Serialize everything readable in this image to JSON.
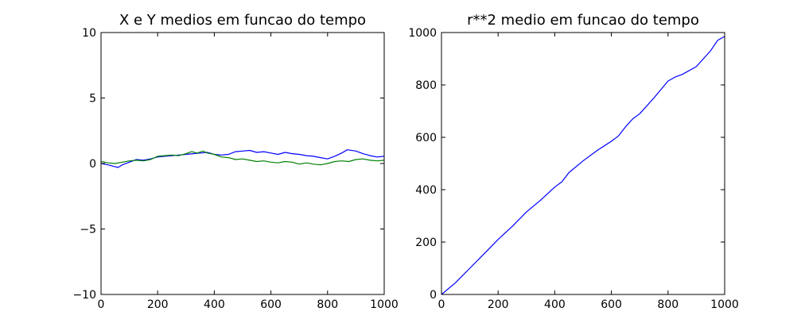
{
  "chart_data": [
    {
      "type": "line",
      "title": "X e Y medios em funcao do tempo",
      "xlabel": "",
      "ylabel": "",
      "xlim": [
        0,
        1000
      ],
      "ylim": [
        -10,
        10
      ],
      "xticks": [
        0,
        200,
        400,
        600,
        800,
        1000
      ],
      "xtick_labels": [
        "0",
        "200",
        "400",
        "600",
        "800",
        "1000"
      ],
      "yticks": [
        -10,
        -5,
        0,
        5,
        10
      ],
      "ytick_labels": [
        "−10",
        "−5",
        "0",
        "5",
        "10"
      ],
      "grid": false,
      "series": [
        {
          "color": "#0000ff",
          "x": [
            0,
            25,
            50,
            60,
            75,
            100,
            125,
            150,
            175,
            200,
            225,
            250,
            275,
            300,
            325,
            350,
            375,
            400,
            425,
            450,
            475,
            500,
            525,
            550,
            575,
            600,
            625,
            650,
            675,
            700,
            725,
            750,
            775,
            800,
            825,
            850,
            870,
            900,
            925,
            950,
            975,
            1000
          ],
          "values": [
            0.0,
            -0.1,
            -0.25,
            -0.3,
            -0.1,
            0.1,
            0.3,
            0.25,
            0.35,
            0.5,
            0.55,
            0.6,
            0.65,
            0.7,
            0.75,
            0.8,
            0.85,
            0.7,
            0.65,
            0.7,
            0.9,
            0.95,
            1.0,
            0.85,
            0.9,
            0.8,
            0.7,
            0.85,
            0.75,
            0.7,
            0.6,
            0.55,
            0.45,
            0.35,
            0.55,
            0.8,
            1.05,
            0.95,
            0.75,
            0.6,
            0.5,
            0.55
          ]
        },
        {
          "color": "#008000",
          "x": [
            0,
            25,
            50,
            75,
            100,
            125,
            150,
            175,
            200,
            225,
            250,
            275,
            300,
            320,
            340,
            360,
            375,
            400,
            425,
            450,
            475,
            500,
            525,
            550,
            575,
            600,
            625,
            650,
            675,
            700,
            725,
            750,
            775,
            800,
            825,
            850,
            875,
            900,
            925,
            950,
            975,
            1000
          ],
          "values": [
            0.15,
            0.05,
            0.0,
            0.1,
            0.2,
            0.25,
            0.2,
            0.3,
            0.55,
            0.6,
            0.65,
            0.6,
            0.75,
            0.9,
            0.8,
            0.95,
            0.8,
            0.7,
            0.5,
            0.45,
            0.3,
            0.35,
            0.25,
            0.15,
            0.2,
            0.1,
            0.05,
            0.15,
            0.1,
            -0.05,
            0.05,
            -0.05,
            -0.1,
            0.0,
            0.15,
            0.2,
            0.15,
            0.3,
            0.35,
            0.25,
            0.2,
            0.25
          ]
        }
      ]
    },
    {
      "type": "line",
      "title": "r**2 medio em funcao do tempo",
      "xlabel": "",
      "ylabel": "",
      "xlim": [
        0,
        1000
      ],
      "ylim": [
        0,
        1000
      ],
      "xticks": [
        0,
        200,
        400,
        600,
        800,
        1000
      ],
      "xtick_labels": [
        "0",
        "200",
        "400",
        "600",
        "800",
        "1000"
      ],
      "yticks": [
        0,
        200,
        400,
        600,
        800,
        1000
      ],
      "ytick_labels": [
        "0",
        "200",
        "400",
        "600",
        "800",
        "1000"
      ],
      "grid": false,
      "series": [
        {
          "color": "#0000ff",
          "x": [
            0,
            50,
            100,
            150,
            200,
            250,
            300,
            350,
            400,
            425,
            450,
            500,
            550,
            600,
            625,
            650,
            675,
            700,
            750,
            800,
            825,
            850,
            900,
            950,
            975,
            1000
          ],
          "values": [
            0,
            45,
            100,
            155,
            210,
            260,
            315,
            360,
            410,
            430,
            465,
            510,
            550,
            585,
            605,
            640,
            670,
            690,
            750,
            815,
            830,
            840,
            870,
            930,
            970,
            985
          ]
        }
      ]
    }
  ]
}
